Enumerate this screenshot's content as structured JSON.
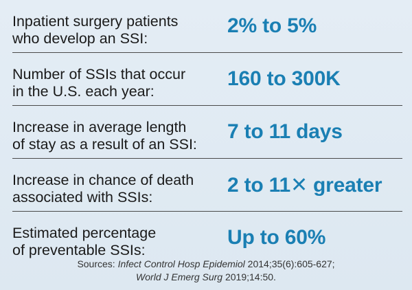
{
  "rows": [
    {
      "label": "Inpatient surgery patients\nwho develop an SSI:",
      "value": "2% to 5%"
    },
    {
      "label": "Number of SSIs that occur\nin the U.S. each year:",
      "value": "160 to 300K"
    },
    {
      "label": "Increase in average length\nof stay as a result of an SSI:",
      "value": "7 to 11 days"
    },
    {
      "label": "Increase in chance of death\nassociated with SSIs:",
      "value": "2 to 11✕ greater"
    },
    {
      "label": "Estimated percentage\nof preventable SSIs:",
      "value": "Up to 60%"
    }
  ],
  "sources": {
    "prefix": "Sources: ",
    "journal1": "Infect Control Hosp Epidemiol",
    "cite1": " 2014;35(6):605-627;",
    "journal2": "World J Emerg Surg",
    "cite2": " 2019;14:50."
  },
  "colors": {
    "value_text": "#1a7fb3",
    "label_text": "#1a1a1a",
    "background": "#e2ecf4"
  }
}
